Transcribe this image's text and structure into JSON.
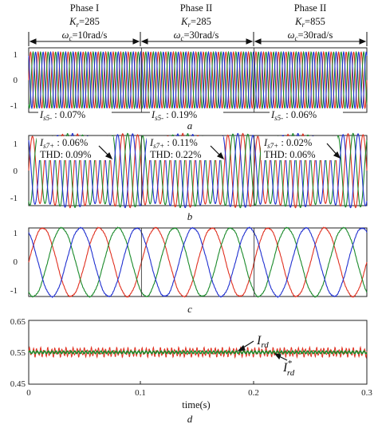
{
  "phases": [
    {
      "name": "Phase I",
      "kr": "=285",
      "wc": "=10rad/s"
    },
    {
      "name": "Phase II",
      "kr": "=285",
      "wc": "=30rad/s"
    },
    {
      "name": "Phase II",
      "kr": "=855",
      "wc": "=30rad/s"
    }
  ],
  "colors": {
    "a": "#e03020",
    "b": "#1a8a2a",
    "c": "#2030d0",
    "ref": "#1a8a2a",
    "meas": "#e03020"
  },
  "chart_data": [
    {
      "type": "line",
      "panel": "a",
      "ylim": [
        -1.15,
        1.15
      ],
      "yticks": [
        "1",
        "0",
        "-1"
      ],
      "x_range": [
        0,
        0.3
      ],
      "signal": "three-phase sinusoid",
      "series": [
        {
          "values": []
        },
        {
          "values": []
        },
        {
          "values": []
        }
      ],
      "frequency_hz_estimate": 150,
      "annotations": [
        {
          "label": "I",
          "sub": "s5-",
          "text": " : 0.07%"
        },
        {
          "label": "I",
          "sub": "s5-",
          "text": " : 0.19%"
        },
        {
          "label": "I",
          "sub": "s5-",
          "text": " : 0.06%"
        }
      ]
    },
    {
      "type": "line",
      "panel": "b",
      "ylim": [
        -1.0,
        1.0
      ],
      "yticks": [
        "1",
        "0",
        "-1"
      ],
      "x_range": [
        0,
        0.3
      ],
      "signal": "three-phase sinusoid",
      "series": [
        {
          "values": []
        },
        {
          "values": []
        },
        {
          "values": []
        }
      ],
      "frequency_hz_estimate": 75,
      "annotations": [
        {
          "label": "I",
          "sub": "s7+",
          "text": " : 0.06%",
          "thd": "THD: 0.09%"
        },
        {
          "label": "I",
          "sub": "s7+",
          "text": " : 0.11%",
          "thd": "THD: 0.22%"
        },
        {
          "label": "I",
          "sub": "s7+",
          "text": " : 0.02%",
          "thd": "THD: 0.06%"
        }
      ]
    },
    {
      "type": "line",
      "panel": "c",
      "ylim": [
        -1.0,
        1.0
      ],
      "yticks": [
        "1",
        "0",
        "-1"
      ],
      "x_range": [
        0,
        0.3
      ],
      "signal": "three-phase sinusoid",
      "series": [
        {
          "values": []
        },
        {
          "values": []
        },
        {
          "values": []
        }
      ],
      "frequency_hz_estimate": 20
    },
    {
      "type": "line",
      "panel": "d",
      "ylim": [
        0.45,
        0.65
      ],
      "yticks": [
        "0.65",
        "0.55",
        "0.45"
      ],
      "xticks": [
        "0",
        "0.1",
        "0.2",
        "0.3"
      ],
      "xlabel": "time(s)",
      "series": [
        {
          "name": "I",
          "sub": "rd",
          "values": [],
          "mean": 0.55,
          "ripple": 0.015
        },
        {
          "name": "I",
          "sub": "rd",
          "sup": "*",
          "values": [],
          "mean": 0.55
        }
      ]
    }
  ],
  "panel_letters": [
    "a",
    "b",
    "c",
    "d"
  ]
}
